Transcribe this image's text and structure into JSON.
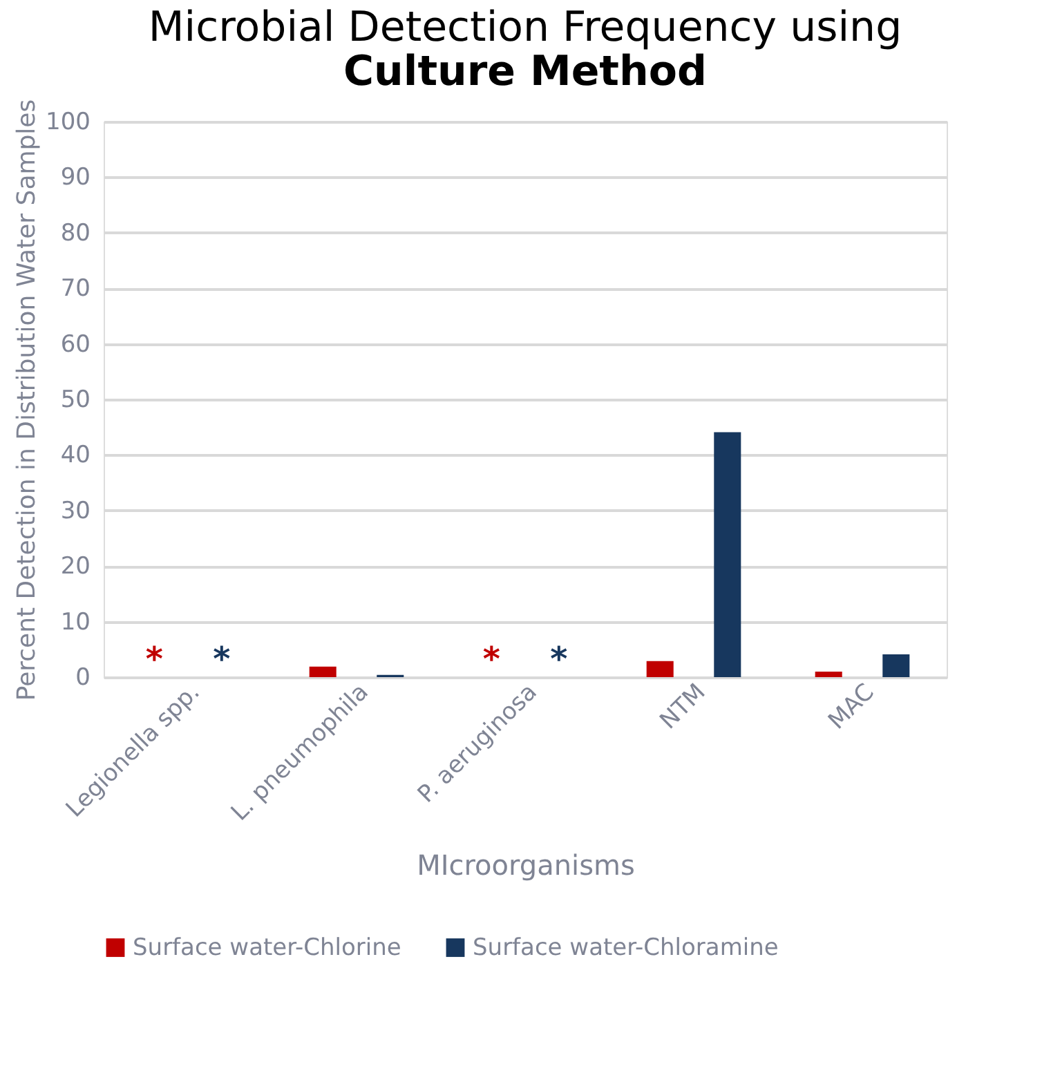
{
  "chart_data": {
    "type": "bar",
    "title": "Microbial Detection Frequency using",
    "subtitle": "Culture Method",
    "xlabel": "MIcroorganisms",
    "ylabel": "Percent Detection in Distribution Water Samples",
    "categories": [
      "Legionella spp.",
      "L. pneumophila",
      "P. aeruginosa",
      "NTM",
      "MAC"
    ],
    "series": [
      {
        "name": "Surface water-Chlorine",
        "color": "#c00000",
        "values": [
          null,
          1.9,
          null,
          2.9,
          1.0
        ],
        "value_labels": [
          "*",
          null,
          "*",
          null,
          null
        ]
      },
      {
        "name": "Surface water-Chloramine",
        "color": "#17375e",
        "values": [
          null,
          0.4,
          null,
          44.1,
          4.1
        ],
        "value_labels": [
          "*",
          null,
          "*",
          null,
          null
        ]
      }
    ],
    "ylim": [
      0,
      100
    ],
    "yticks": [
      0,
      10,
      20,
      30,
      40,
      50,
      60,
      70,
      80,
      90,
      100
    ],
    "grid": "y",
    "legend": "bottom"
  }
}
